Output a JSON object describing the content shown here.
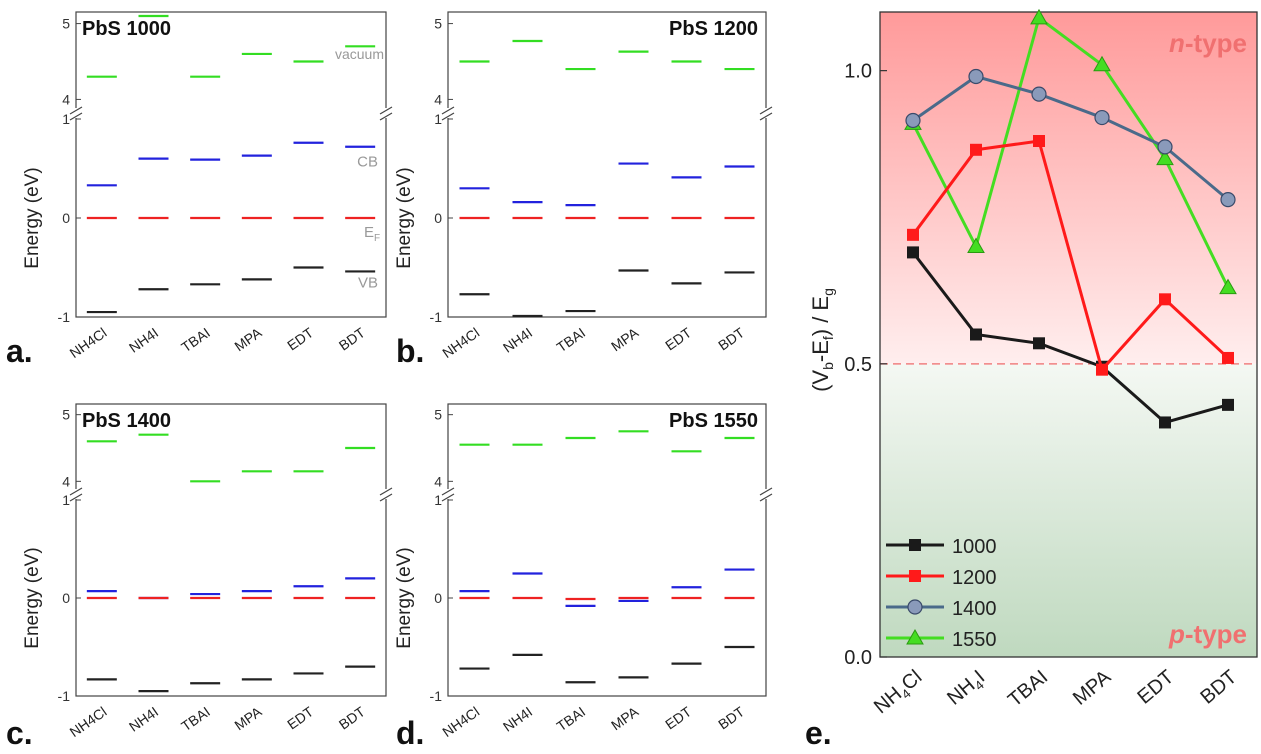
{
  "chart_data": [
    {
      "panel_label": "a.",
      "title": "PbS 1000",
      "type": "energy-levels",
      "ylabel": "Energy (eV)",
      "categories": [
        "NH4Cl",
        "NH4I",
        "TBAI",
        "MPA",
        "EDT",
        "BDT"
      ],
      "yticks_lower": [
        "-1",
        "0",
        "1"
      ],
      "yticks_upper": [
        "4",
        "5"
      ],
      "ylim_lower": [
        -1,
        1
      ],
      "ylim_upper": [
        3.9,
        5.1
      ],
      "level_labels": {
        "vacuum": "vacuum",
        "cb": "CB",
        "ef": "E",
        "ef_sub": "F",
        "vb": "VB"
      },
      "series": [
        {
          "name": "vacuum",
          "values": [
            4.3,
            5.1,
            4.3,
            4.6,
            4.5,
            4.7
          ]
        },
        {
          "name": "CB",
          "values": [
            0.33,
            0.6,
            0.59,
            0.63,
            0.76,
            0.72
          ]
        },
        {
          "name": "EF",
          "values": [
            0,
            0,
            0,
            0,
            0,
            0
          ]
        },
        {
          "name": "VB",
          "values": [
            -0.95,
            -0.72,
            -0.67,
            -0.62,
            -0.5,
            -0.54
          ]
        }
      ]
    },
    {
      "panel_label": "b.",
      "title": "PbS 1200",
      "type": "energy-levels",
      "ylabel": "Energy (eV)",
      "categories": [
        "NH4Cl",
        "NH4I",
        "TBAI",
        "MPA",
        "EDT",
        "BDT"
      ],
      "yticks_lower": [
        "-1",
        "0",
        "1"
      ],
      "yticks_upper": [
        "4",
        "5"
      ],
      "ylim_lower": [
        -1,
        1
      ],
      "ylim_upper": [
        3.9,
        5.1
      ],
      "series": [
        {
          "name": "vacuum",
          "values": [
            4.5,
            4.77,
            4.4,
            4.63,
            4.5,
            4.4
          ]
        },
        {
          "name": "CB",
          "values": [
            0.3,
            0.16,
            0.13,
            0.55,
            0.41,
            0.52
          ]
        },
        {
          "name": "EF",
          "values": [
            0,
            0,
            0,
            0,
            0,
            0
          ]
        },
        {
          "name": "VB",
          "values": [
            -0.77,
            -0.99,
            -0.94,
            -0.53,
            -0.66,
            -0.55
          ]
        }
      ]
    },
    {
      "panel_label": "c.",
      "title": "PbS 1400",
      "type": "energy-levels",
      "ylabel": "Energy (eV)",
      "categories": [
        "NH4Cl",
        "NH4I",
        "TBAI",
        "MPA",
        "EDT",
        "BDT"
      ],
      "yticks_lower": [
        "-1",
        "0",
        "1"
      ],
      "yticks_upper": [
        "4",
        "5"
      ],
      "ylim_lower": [
        -1,
        1
      ],
      "ylim_upper": [
        3.9,
        5.1
      ],
      "series": [
        {
          "name": "vacuum",
          "values": [
            4.6,
            4.7,
            4.0,
            4.15,
            4.15,
            4.5
          ]
        },
        {
          "name": "CB",
          "values": [
            0.07,
            0.0,
            0.04,
            0.07,
            0.12,
            0.2
          ]
        },
        {
          "name": "EF",
          "values": [
            0,
            0,
            0,
            0,
            0,
            0
          ]
        },
        {
          "name": "VB",
          "values": [
            -0.83,
            -0.95,
            -0.87,
            -0.83,
            -0.77,
            -0.7
          ]
        }
      ]
    },
    {
      "panel_label": "d.",
      "title": "PbS 1550",
      "type": "energy-levels",
      "ylabel": "Energy (eV)",
      "categories": [
        "NH4Cl",
        "NH4I",
        "TBAI",
        "MPA",
        "EDT",
        "BDT"
      ],
      "yticks_lower": [
        "-1",
        "0",
        "1"
      ],
      "yticks_upper": [
        "4",
        "5"
      ],
      "ylim_lower": [
        -1,
        1
      ],
      "ylim_upper": [
        3.9,
        5.1
      ],
      "series": [
        {
          "name": "vacuum",
          "values": [
            4.55,
            4.55,
            4.65,
            4.75,
            4.45,
            4.65
          ]
        },
        {
          "name": "CB",
          "values": [
            0.07,
            0.25,
            -0.08,
            -0.03,
            0.11,
            0.29
          ]
        },
        {
          "name": "EF",
          "values": [
            0,
            0,
            -0.01,
            0,
            0,
            0
          ]
        },
        {
          "name": "VB",
          "values": [
            -0.72,
            -0.58,
            -0.86,
            -0.81,
            -0.67,
            -0.5
          ]
        }
      ]
    },
    {
      "panel_label": "e.",
      "type": "line",
      "ylabel_parts": {
        "pre": "(V",
        "b": "b",
        "mid": "-E",
        "f": "f",
        "post": ") / E",
        "g": "g"
      },
      "ylim": [
        0.0,
        1.1
      ],
      "yticks": [
        "0.0",
        "0.5",
        "1.0"
      ],
      "reference_line": 0.5,
      "region_labels": {
        "n_italic": "n",
        "n_rest": "-type",
        "p_italic": "p",
        "p_rest": "-type"
      },
      "categories": [
        {
          "main": "NH",
          "sub": "4",
          "tail": "Cl"
        },
        {
          "main": "NH",
          "sub": "4",
          "tail": "I"
        },
        {
          "main": "TBAI",
          "sub": "",
          "tail": ""
        },
        {
          "main": "MPA",
          "sub": "",
          "tail": ""
        },
        {
          "main": "EDT",
          "sub": "",
          "tail": ""
        },
        {
          "main": "BDT",
          "sub": "",
          "tail": ""
        }
      ],
      "series": [
        {
          "name": "1000",
          "marker": "square",
          "color": "#1a1a1a",
          "values": [
            0.69,
            0.55,
            0.535,
            0.495,
            0.4,
            0.43
          ]
        },
        {
          "name": "1200",
          "marker": "square",
          "color": "#ff1a1a",
          "values": [
            0.72,
            0.865,
            0.88,
            0.49,
            0.61,
            0.51
          ]
        },
        {
          "name": "1400",
          "marker": "circle",
          "color": "#4a6a8a",
          "values": [
            0.915,
            0.99,
            0.96,
            0.92,
            0.87,
            0.78
          ]
        },
        {
          "name": "1550",
          "marker": "triangle",
          "color": "#44dd22",
          "values": [
            0.91,
            0.7,
            1.09,
            1.01,
            0.85,
            0.63
          ]
        }
      ]
    }
  ]
}
